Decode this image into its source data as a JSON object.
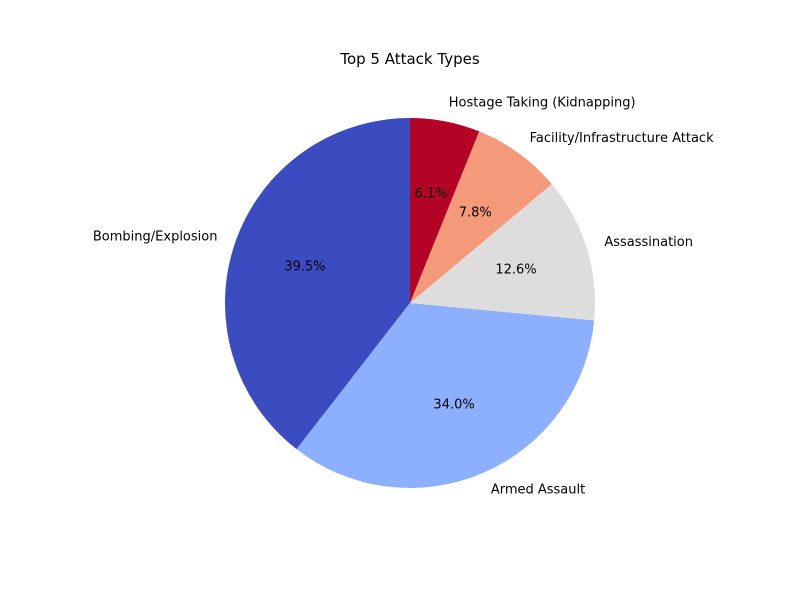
{
  "chart_data": {
    "type": "pie",
    "title": "Top 5 Attack Types",
    "categories": [
      "Bombing/Explosion",
      "Armed Assault",
      "Assassination",
      "Facility/Infrastructure Attack",
      "Hostage Taking (Kidnapping)"
    ],
    "values": [
      39.5,
      34.0,
      12.6,
      7.8,
      6.1
    ],
    "value_labels": [
      "39.5%",
      "34.0%",
      "12.6%",
      "7.8%",
      "6.1%"
    ],
    "colors": [
      "#3b4cc0",
      "#8caffe",
      "#dddddd",
      "#f49a7b",
      "#b40426"
    ],
    "start_angle_deg": 90,
    "direction": "counterclockwise",
    "legend": "none"
  }
}
